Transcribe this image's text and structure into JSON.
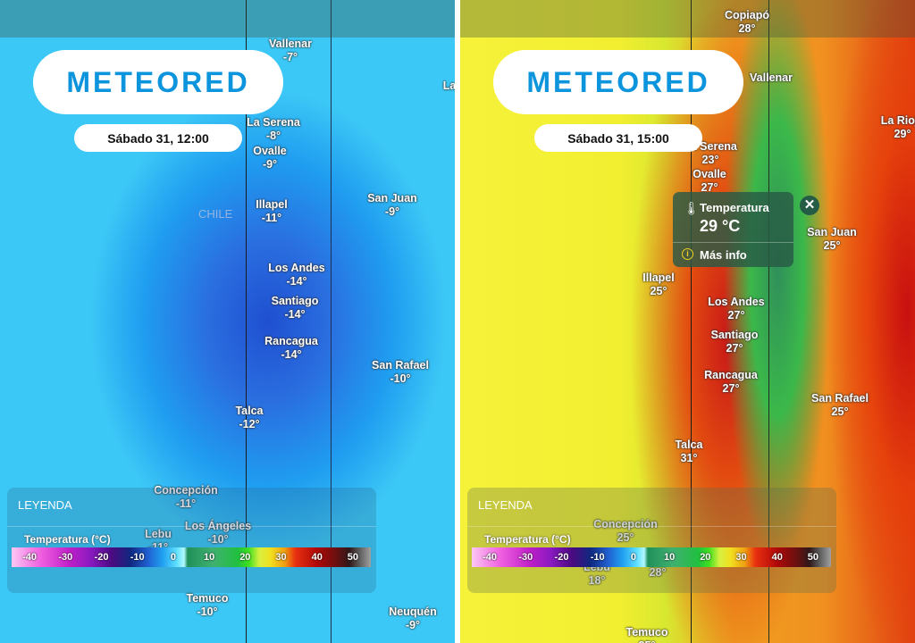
{
  "brand": "METEORED",
  "colors": {
    "brand": "#0c94dd"
  },
  "panels": [
    {
      "date": "Sábado 31, 12:00",
      "country": "CHILE",
      "cities": [
        {
          "name": "Vallenar",
          "temp": "-7°"
        },
        {
          "name": "La Serena",
          "temp": "-8°"
        },
        {
          "name": "Ovalle",
          "temp": "-9°"
        },
        {
          "name": "Illapel",
          "temp": "-11°"
        },
        {
          "name": "San Juan",
          "temp": "-9°"
        },
        {
          "name": "Los Andes",
          "temp": "-14°"
        },
        {
          "name": "Santiago",
          "temp": "-14°"
        },
        {
          "name": "Rancagua",
          "temp": "-14°"
        },
        {
          "name": "San Rafael",
          "temp": "-10°"
        },
        {
          "name": "Talca",
          "temp": "-12°"
        },
        {
          "name": "Concepción",
          "temp": "-11°"
        },
        {
          "name": "Lebu",
          "temp": "-11°"
        },
        {
          "name": "Los Ángeles",
          "temp": "-10°"
        },
        {
          "name": "Temuco",
          "temp": "-10°"
        },
        {
          "name": "Neuquén",
          "temp": "-9°"
        },
        {
          "name": "La",
          "temp": ""
        }
      ]
    },
    {
      "date": "Sábado 31, 15:00",
      "country": "CHILE",
      "cities": [
        {
          "name": "Copiapó",
          "temp": "28°"
        },
        {
          "name": "La Serena",
          "temp": "23°"
        },
        {
          "name": "Ovalle",
          "temp": "27°"
        },
        {
          "name": "Illapel",
          "temp": "25°"
        },
        {
          "name": "San Juan",
          "temp": "25°"
        },
        {
          "name": "Los Andes",
          "temp": "27°"
        },
        {
          "name": "Santiago",
          "temp": "27°"
        },
        {
          "name": "Rancagua",
          "temp": "27°"
        },
        {
          "name": "San Rafael",
          "temp": "25°"
        },
        {
          "name": "Talca",
          "temp": "31°"
        },
        {
          "name": "Concepción",
          "temp": "25°"
        },
        {
          "name": "Lebu",
          "temp": "18°"
        },
        {
          "name": "",
          "temp": "28°"
        },
        {
          "name": "Temuco",
          "temp": "25°"
        },
        {
          "name": "La Rioja",
          "temp": "29°"
        },
        {
          "name": "Vallenar",
          "temp": ""
        }
      ]
    }
  ],
  "legend": {
    "title": "LEYENDA",
    "subtitle": "Temperatura (°C)",
    "ticks": [
      "-40",
      "-30",
      "-20",
      "-10",
      "0",
      "10",
      "20",
      "30",
      "40",
      "50"
    ]
  },
  "popup": {
    "label": "Temperatura",
    "value": "29 °C",
    "more": "Más info",
    "close": "✕",
    "info_icon": "i",
    "thermometer_icon": "🌡"
  }
}
